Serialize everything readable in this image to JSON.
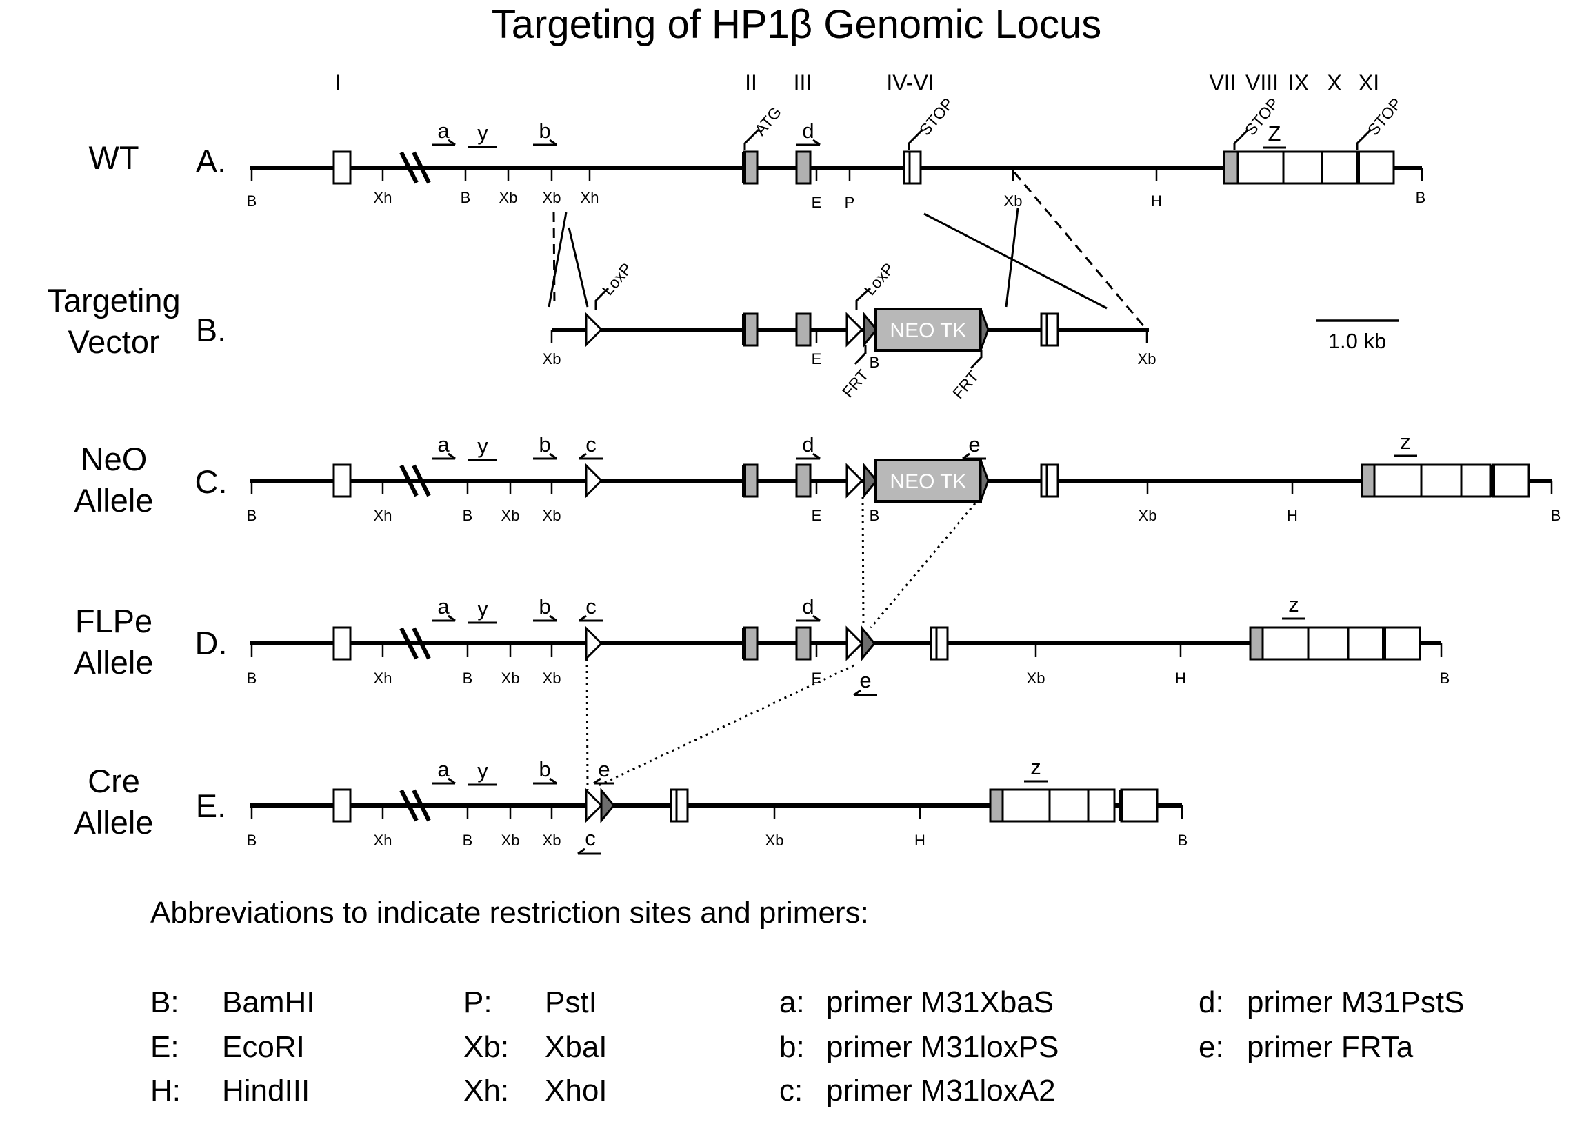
{
  "title": "Targeting of HP1β Genomic Locus",
  "exon_labels": [
    "I",
    "II",
    "III",
    "IV-VI",
    "VII",
    "VIII",
    "IX",
    "X",
    "XI"
  ],
  "rows": [
    {
      "name_lines": [
        "WT"
      ],
      "letter": "A."
    },
    {
      "name_lines": [
        "Targeting",
        "Vector"
      ],
      "letter": "B."
    },
    {
      "name_lines": [
        "NeO",
        "Allele"
      ],
      "letter": "C."
    },
    {
      "name_lines": [
        "FLPe",
        "Allele"
      ],
      "letter": "D."
    },
    {
      "name_lines": [
        "Cre",
        "Allele"
      ],
      "letter": "E."
    }
  ],
  "annotations": {
    "atg": "ATG",
    "stop": "STOP",
    "loxp": "LoxP",
    "frt": "FRT",
    "neo": "NEO TK"
  },
  "primers": {
    "a": "a",
    "y": "y",
    "b": "b",
    "c": "c",
    "d": "d",
    "e": "e",
    "Z": "Z",
    "z": "z"
  },
  "sites": {
    "B": "B",
    "Xh": "Xh",
    "Xb": "Xb",
    "E": "E",
    "P": "P",
    "H": "H"
  },
  "scale_bar": "1.0 kb",
  "legend": {
    "heading": "Abbreviations to indicate restriction sites and primers:",
    "columns": [
      [
        {
          "key": "B:",
          "value": "BamHI"
        },
        {
          "key": "E:",
          "value": "EcoRI"
        },
        {
          "key": "H:",
          "value": "HindIII"
        }
      ],
      [
        {
          "key": "P:",
          "value": "PstI"
        },
        {
          "key": "Xb:",
          "value": "XbaI"
        },
        {
          "key": "Xh:",
          "value": "XhoI"
        }
      ],
      [
        {
          "key": "a:",
          "value": "primer M31XbaS"
        },
        {
          "key": "b:",
          "value": "primer M31loxPS"
        },
        {
          "key": "c:",
          "value": "primer M31loxA2"
        }
      ],
      [
        {
          "key": "d:",
          "value": "primer M31PstS"
        },
        {
          "key": "e:",
          "value": "primer  FRTa"
        }
      ]
    ]
  },
  "colors": {
    "line": "#000000",
    "exon_coding": "#b0b0b0",
    "neo_box": "#b8b8b8",
    "frt": "#6e6e6e",
    "background": "#ffffff"
  }
}
